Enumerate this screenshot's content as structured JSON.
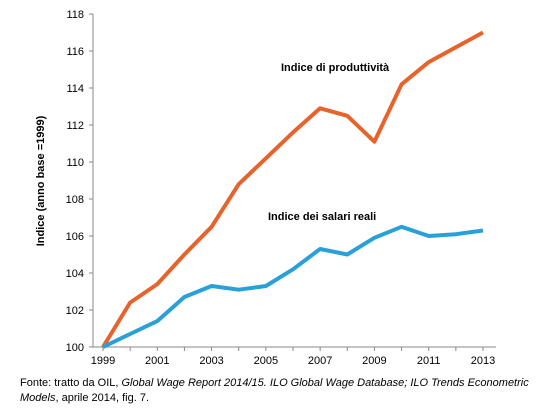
{
  "chart_data": {
    "type": "line",
    "ylabel": "Indice (anno base =1999)",
    "xlabel": "",
    "ylim": [
      100,
      118
    ],
    "y_ticks": [
      "100",
      "102",
      "104",
      "106",
      "108",
      "110",
      "112",
      "114",
      "116",
      "118"
    ],
    "x": [
      1999,
      2000,
      2001,
      2002,
      2003,
      2004,
      2005,
      2006,
      2007,
      2008,
      2009,
      2010,
      2011,
      2012,
      2013
    ],
    "x_tick_labels": [
      "1999",
      "2001",
      "2003",
      "2005",
      "2007",
      "2009",
      "2011",
      "2013"
    ],
    "grid": false,
    "series": [
      {
        "name": "Indice di produttività",
        "color": "#e8632b",
        "values": [
          100.0,
          102.4,
          103.4,
          105.0,
          106.5,
          108.8,
          110.2,
          111.6,
          112.9,
          112.5,
          111.1,
          114.2,
          115.4,
          116.2,
          117.0
        ]
      },
      {
        "name": "Indice dei salari reali",
        "color": "#2aa0d8",
        "values": [
          100.0,
          100.7,
          101.4,
          102.7,
          103.3,
          103.1,
          103.3,
          104.2,
          105.3,
          105.0,
          105.9,
          106.5,
          106.0,
          106.1,
          106.3
        ]
      }
    ]
  },
  "caption": {
    "prefix": "Fonte: tratto da OIL, ",
    "title_italic": "Global Wage Report 2014/15. ILO Global Wage Database; ILO Trends Econometric Models",
    "suffix": ", aprile 2014, fig. 7."
  }
}
